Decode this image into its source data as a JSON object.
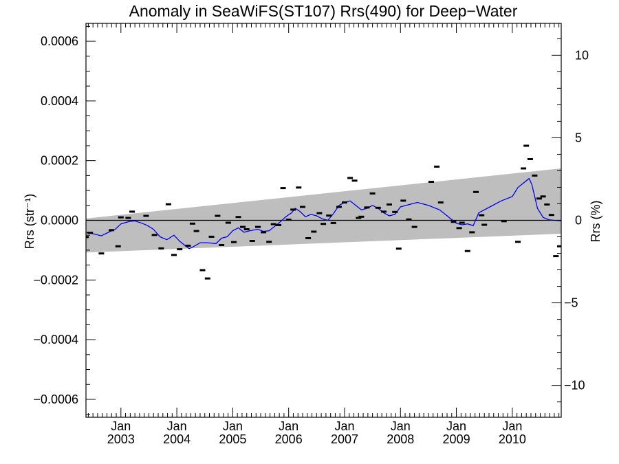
{
  "chart_data": {
    "type": "scatter",
    "title": "Anomaly in SeaWiFS(ST107) Rrs(490) for Deep−Water",
    "ylabel_left": "Rrs (str⁻¹)",
    "ylabel_right": "Rrs (%)",
    "xlabel": "",
    "xlim": [
      2002.375,
      2010.875
    ],
    "ylim_left": [
      -0.00066,
      0.00066
    ],
    "ylim_right": [
      -11.93,
      11.93
    ],
    "x_ticks": [
      {
        "x": 2003.0,
        "month": "Jan",
        "year": "2003"
      },
      {
        "x": 2004.0,
        "month": "Jan",
        "year": "2004"
      },
      {
        "x": 2005.0,
        "month": "Jan",
        "year": "2005"
      },
      {
        "x": 2006.0,
        "month": "Jan",
        "year": "2006"
      },
      {
        "x": 2007.0,
        "month": "Jan",
        "year": "2007"
      },
      {
        "x": 2008.0,
        "month": "Jan",
        "year": "2008"
      },
      {
        "x": 2009.0,
        "month": "Jan",
        "year": "2009"
      },
      {
        "x": 2010.0,
        "month": "Jan",
        "year": "2010"
      }
    ],
    "y_ticks_left": [
      {
        "v": 0.0006,
        "label": "0.0006"
      },
      {
        "v": 0.0004,
        "label": "0.0004"
      },
      {
        "v": 0.0002,
        "label": "0.0002"
      },
      {
        "v": 0.0,
        "label": "0.0000"
      },
      {
        "v": -0.0002,
        "label": "−0.0002"
      },
      {
        "v": -0.0004,
        "label": "−0.0004"
      },
      {
        "v": -0.0006,
        "label": "−0.0006"
      }
    ],
    "y_ticks_right": [
      {
        "v": 10,
        "label": "10"
      },
      {
        "v": 5,
        "label": "5"
      },
      {
        "v": 0,
        "label": "0"
      },
      {
        "v": -5,
        "label": "−5"
      },
      {
        "v": -10,
        "label": "−10"
      }
    ],
    "envelope": {
      "x": [
        2002.375,
        2010.875
      ],
      "upper": [
        6e-06,
        0.000174
      ],
      "lower": [
        -0.000108,
        -4.5e-05
      ]
    },
    "zero_line": 0,
    "points": [
      {
        "x": 2002.375,
        "y": -5.6e-05
      },
      {
        "x": 2002.45,
        "y": -4.2e-05
      },
      {
        "x": 2002.65,
        "y": -0.000111
      },
      {
        "x": 2002.83,
        "y": -3.3e-05
      },
      {
        "x": 2002.95,
        "y": -8.7e-05
      },
      {
        "x": 2003.0,
        "y": 1e-05
      },
      {
        "x": 2003.13,
        "y": 8e-06
      },
      {
        "x": 2003.2,
        "y": 2.9e-05
      },
      {
        "x": 2003.45,
        "y": 1.5e-05
      },
      {
        "x": 2003.6,
        "y": -4.9e-05
      },
      {
        "x": 2003.72,
        "y": -9.4e-05
      },
      {
        "x": 2003.85,
        "y": 5.4e-05
      },
      {
        "x": 2003.95,
        "y": -0.000116
      },
      {
        "x": 2004.05,
        "y": -9.7e-05
      },
      {
        "x": 2004.2,
        "y": -8.5e-05
      },
      {
        "x": 2004.28,
        "y": -1.1e-05
      },
      {
        "x": 2004.35,
        "y": -3.6e-05
      },
      {
        "x": 2004.46,
        "y": -0.000167
      },
      {
        "x": 2004.55,
        "y": -0.000195
      },
      {
        "x": 2004.62,
        "y": -5.5e-05
      },
      {
        "x": 2004.73,
        "y": 1.5e-05
      },
      {
        "x": 2004.8,
        "y": -8.3e-05
      },
      {
        "x": 2004.92,
        "y": -8e-06
      },
      {
        "x": 2005.02,
        "y": -7.3e-05
      },
      {
        "x": 2005.1,
        "y": 1.1e-05
      },
      {
        "x": 2005.18,
        "y": -2.2e-05
      },
      {
        "x": 2005.25,
        "y": -3e-05
      },
      {
        "x": 2005.35,
        "y": -6.9e-05
      },
      {
        "x": 2005.45,
        "y": -2.2e-05
      },
      {
        "x": 2005.55,
        "y": -4e-05
      },
      {
        "x": 2005.65,
        "y": -7.2e-05
      },
      {
        "x": 2005.73,
        "y": -1.3e-05
      },
      {
        "x": 2005.82,
        "y": -1.6e-05
      },
      {
        "x": 2005.9,
        "y": 0.000108
      },
      {
        "x": 2006.0,
        "y": 2e-06
      },
      {
        "x": 2006.08,
        "y": 3.6e-05
      },
      {
        "x": 2006.18,
        "y": 0.00011
      },
      {
        "x": 2006.25,
        "y": 4.5e-05
      },
      {
        "x": 2006.35,
        "y": -6e-05
      },
      {
        "x": 2006.45,
        "y": -3.8e-05
      },
      {
        "x": 2006.55,
        "y": 2.4e-05
      },
      {
        "x": 2006.62,
        "y": -1.2e-05
      },
      {
        "x": 2006.72,
        "y": 1.6e-05
      },
      {
        "x": 2006.8,
        "y": -9e-06
      },
      {
        "x": 2006.9,
        "y": 4.5e-05
      },
      {
        "x": 2007.0,
        "y": 6e-05
      },
      {
        "x": 2007.1,
        "y": 0.000142
      },
      {
        "x": 2007.18,
        "y": 0.000133
      },
      {
        "x": 2007.25,
        "y": 8e-06
      },
      {
        "x": 2007.3,
        "y": 1.2e-05
      },
      {
        "x": 2007.4,
        "y": 4.3e-05
      },
      {
        "x": 2007.5,
        "y": 9e-05
      },
      {
        "x": 2007.6,
        "y": 4.2e-05
      },
      {
        "x": 2007.7,
        "y": 2.9e-05
      },
      {
        "x": 2007.8,
        "y": 5.3e-05
      },
      {
        "x": 2007.9,
        "y": 2.8e-05
      },
      {
        "x": 2007.97,
        "y": -9.5e-05
      },
      {
        "x": 2008.05,
        "y": 6.6e-05
      },
      {
        "x": 2008.15,
        "y": 3e-06
      },
      {
        "x": 2008.25,
        "y": -2.2e-05
      },
      {
        "x": 2008.55,
        "y": 0.000129
      },
      {
        "x": 2008.65,
        "y": 0.00018
      },
      {
        "x": 2008.72,
        "y": 6e-05
      },
      {
        "x": 2008.95,
        "y": -5e-06
      },
      {
        "x": 2009.05,
        "y": -2.6e-05
      },
      {
        "x": 2009.1,
        "y": -8e-06
      },
      {
        "x": 2009.2,
        "y": -0.000103
      },
      {
        "x": 2009.28,
        "y": -4e-05
      },
      {
        "x": 2009.35,
        "y": 9.5e-05
      },
      {
        "x": 2009.45,
        "y": 1.7e-05
      },
      {
        "x": 2009.5,
        "y": -1.5e-05
      },
      {
        "x": 2009.85,
        "y": -3e-06
      },
      {
        "x": 2010.1,
        "y": -7.2e-05
      },
      {
        "x": 2010.2,
        "y": 0.000174
      },
      {
        "x": 2010.25,
        "y": 0.00025
      },
      {
        "x": 2010.32,
        "y": 0.000205
      },
      {
        "x": 2010.4,
        "y": 0.00015
      },
      {
        "x": 2010.48,
        "y": 7.3e-05
      },
      {
        "x": 2010.55,
        "y": 8e-05
      },
      {
        "x": 2010.62,
        "y": 5.3e-05
      },
      {
        "x": 2010.7,
        "y": 1.8e-05
      },
      {
        "x": 2010.78,
        "y": -0.00012
      },
      {
        "x": 2010.85,
        "y": -8.7e-05
      },
      {
        "x": 2010.93,
        "y": -1e-05
      },
      {
        "x": 2011.0,
        "y": 8.2e-05
      }
    ],
    "smooth_line": {
      "color": "#0000ee",
      "x": [
        2002.375,
        2002.5,
        2002.65,
        2002.8,
        2002.9,
        2003.0,
        2003.15,
        2003.25,
        2003.38,
        2003.48,
        2003.58,
        2003.7,
        2003.82,
        2003.95,
        2004.05,
        2004.15,
        2004.22,
        2004.3,
        2004.42,
        2004.55,
        2004.7,
        2004.8,
        2004.9,
        2005.0,
        2005.1,
        2005.2,
        2005.3,
        2005.45,
        2005.55,
        2005.65,
        2005.75,
        2005.85,
        2005.95,
        2006.05,
        2006.12,
        2006.2,
        2006.3,
        2006.4,
        2006.5,
        2006.6,
        2006.7,
        2006.8,
        2006.9,
        2007.0,
        2007.1,
        2007.2,
        2007.3,
        2007.4,
        2007.5,
        2007.6,
        2007.7,
        2007.8,
        2007.9,
        2008.0,
        2008.1,
        2008.3,
        2008.5,
        2008.7,
        2008.8,
        2008.9,
        2009.0,
        2009.1,
        2009.2,
        2009.3,
        2009.4,
        2009.6,
        2009.8,
        2010.0,
        2010.1,
        2010.2,
        2010.3,
        2010.35,
        2010.4,
        2010.45,
        2010.55,
        2010.65,
        2010.75,
        2010.875
      ],
      "y": [
        -4e-05,
        -4.5e-05,
        -5.2e-05,
        -3.8e-05,
        -3e-05,
        -1.2e-05,
        -4e-06,
        -2e-06,
        -1e-05,
        -1.8e-05,
        -3e-05,
        -5.5e-05,
        -6.5e-05,
        -5e-05,
        -7e-05,
        -8.5e-05,
        -9.5e-05,
        -8.8e-05,
        -7.5e-05,
        -7.5e-05,
        -7.8e-05,
        -6e-05,
        -5.5e-05,
        -3.5e-05,
        -2.5e-05,
        -4e-05,
        -3.5e-05,
        -3e-05,
        -3.7e-05,
        -3.5e-05,
        -2e-05,
        -5e-06,
        1.2e-05,
        2.5e-05,
        4e-05,
        3e-05,
        1.2e-05,
        2e-05,
        1.5e-05,
        5e-06,
        0.0,
        2.2e-05,
        5e-05,
        6e-05,
        6.5e-05,
        5e-05,
        3.5e-05,
        4e-05,
        5e-05,
        4e-05,
        2.5e-05,
        1.5e-05,
        2e-05,
        4.5e-05,
        5e-05,
        6e-05,
        5e-05,
        3.5e-05,
        2e-05,
        5e-06,
        -1e-05,
        -1.5e-05,
        -1.2e-05,
        -1.8e-05,
        2.5e-05,
        4.5e-05,
        6.5e-05,
        8e-05,
        0.00011,
        0.000125,
        0.00014,
        0.00012,
        8e-05,
        4e-05,
        1e-05,
        2e-06,
        0.0,
        -2e-06
      ]
    }
  }
}
